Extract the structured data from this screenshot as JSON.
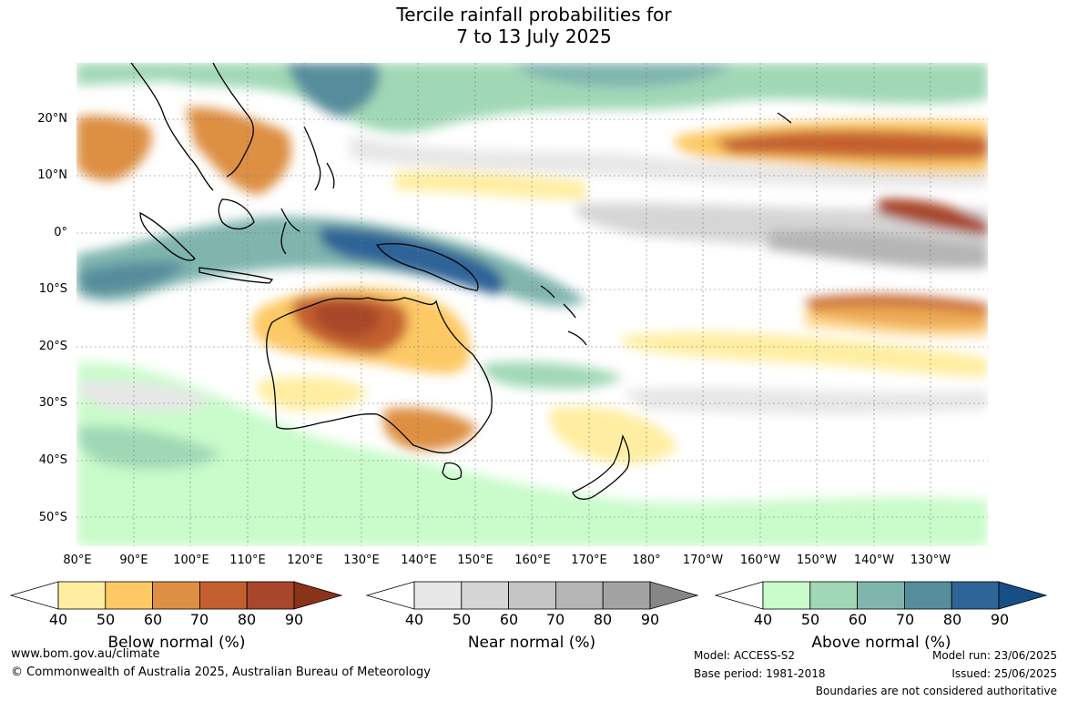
{
  "title": {
    "line1": "Tercile rainfall probabilities for",
    "line2": "7 to 13 July 2025"
  },
  "map": {
    "lat_labels": [
      "20°N",
      "10°N",
      "0°",
      "10°S",
      "20°S",
      "30°S",
      "40°S",
      "50°S"
    ],
    "lon_labels": [
      "80°E",
      "90°E",
      "100°E",
      "110°E",
      "120°E",
      "130°E",
      "140°E",
      "150°E",
      "160°E",
      "170°E",
      "180°",
      "170°W",
      "160°W",
      "150°W",
      "140°W",
      "130°W"
    ],
    "lat_range": [
      -55,
      30
    ],
    "lon_range": [
      80,
      240
    ]
  },
  "colorbars": {
    "below": {
      "title": "Below normal (%)",
      "ticks": [
        "40",
        "50",
        "60",
        "70",
        "80",
        "90"
      ],
      "colors": [
        "#ffeea1",
        "#fdc965",
        "#dd8f43",
        "#c4602f",
        "#a8472b",
        "#8a3318"
      ]
    },
    "near": {
      "title": "Near normal (%)",
      "ticks": [
        "40",
        "50",
        "60",
        "70",
        "80",
        "90"
      ],
      "colors": [
        "#e7e7e7",
        "#d6d6d6",
        "#c5c5c5",
        "#b5b5b5",
        "#a3a3a3",
        "#868686"
      ]
    },
    "above": {
      "title": "Above normal (%)",
      "ticks": [
        "40",
        "50",
        "60",
        "70",
        "80",
        "90"
      ],
      "colors": [
        "#c9fcca",
        "#a0d8b6",
        "#80b5ae",
        "#568d9c",
        "#2f6497",
        "#174e85"
      ]
    }
  },
  "footer": {
    "url": "www.bom.gov.au/climate",
    "copyright": "© Commonwealth of Australia 2025, Australian Bureau of Meteorology",
    "model": "Model: ACCESS-S2",
    "base_period": "Base period: 1981-2018",
    "model_run": "Model run: 23/06/2025",
    "issued": "Issued: 25/06/2025",
    "boundaries_note": "Boundaries are not considered authoritative"
  }
}
